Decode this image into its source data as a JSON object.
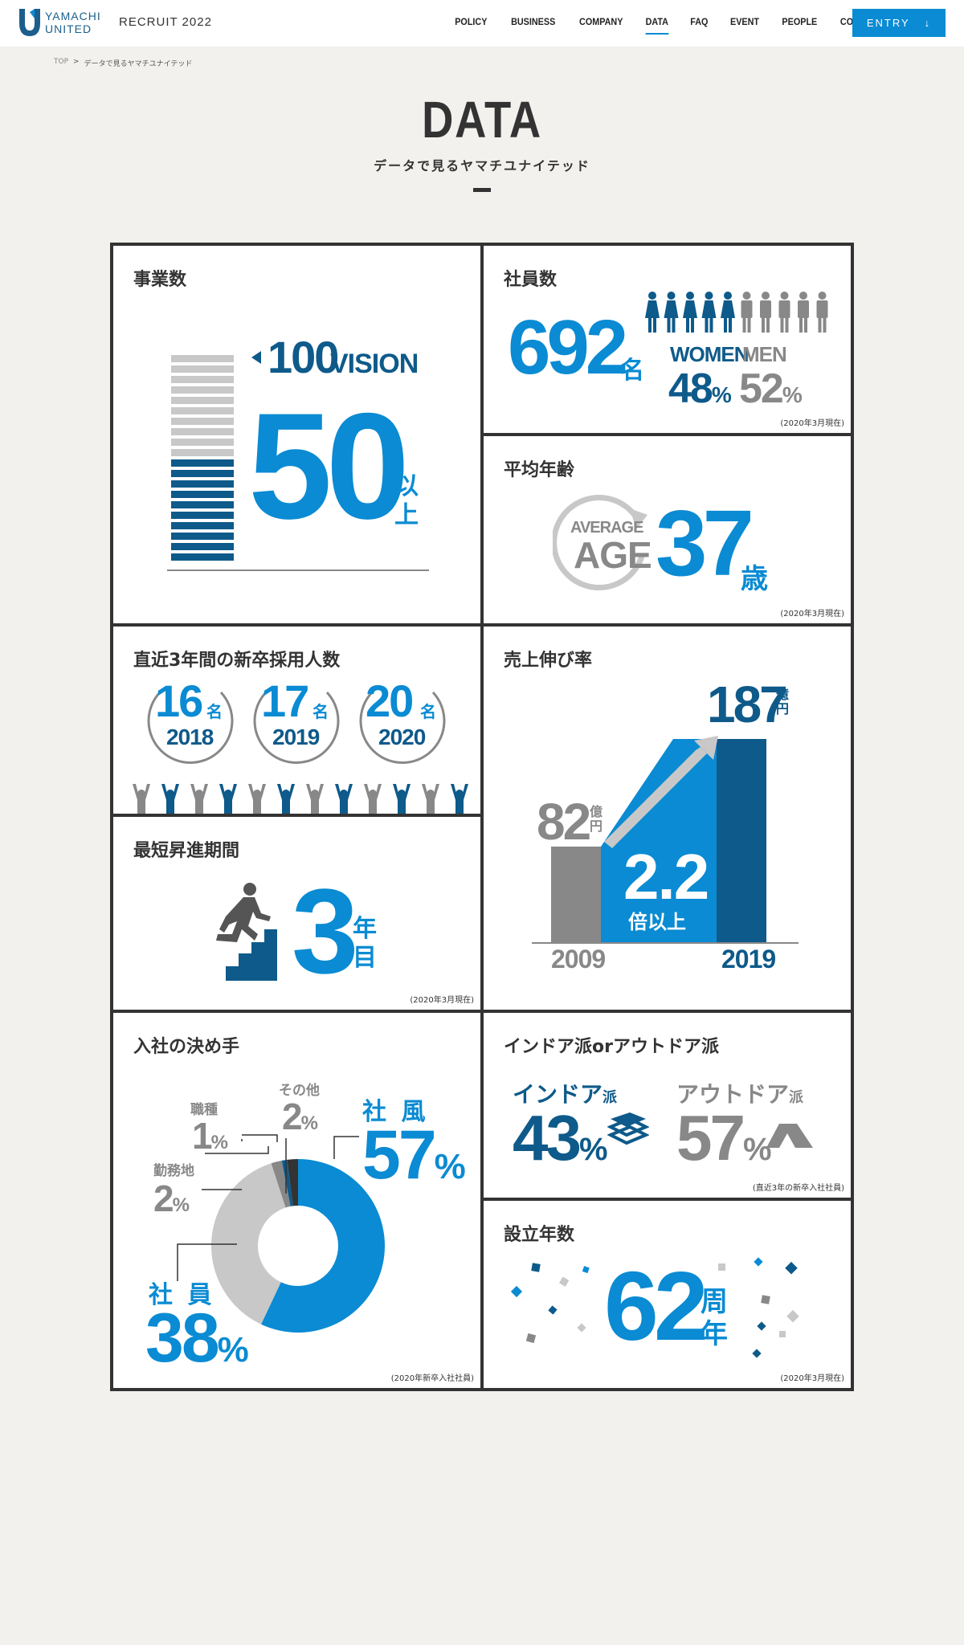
{
  "header": {
    "logo_line1": "YAMACHI",
    "logo_line2": "UNITED",
    "recruit": "RECRUIT 2022",
    "nav": [
      "POLICY",
      "BUSINESS",
      "COMPANY",
      "DATA",
      "FAQ",
      "EVENT",
      "PEOPLE",
      "CONTACT"
    ],
    "active": "DATA",
    "entry": "ENTRY"
  },
  "breadcrumb": {
    "top": "TOP",
    "sep": ">",
    "current": "データで見るヤマチユナイテッド"
  },
  "title": {
    "main": "DATA",
    "sub": "データで見るヤマチユナイテッド"
  },
  "colors": {
    "blue": "#0a8bd3",
    "dark_blue": "#0e5a8a",
    "grey": "#888888",
    "light_grey": "#c8c8c8",
    "bg": "#f2f1ee"
  },
  "cells": {
    "business": {
      "title": "事業数",
      "goal_num": "100",
      "goal_label": "VISION",
      "value": "50",
      "unit1": "以",
      "unit2": "上",
      "bars_filled": 0.5
    },
    "employees": {
      "title": "社員数",
      "value": "692",
      "unit": "名",
      "women_label": "WOMEN",
      "men_label": "MEN",
      "women_pct": "48",
      "men_pct": "52",
      "pct": "%",
      "note": "(2020年3月現在)"
    },
    "age": {
      "title": "平均年齢",
      "ring1": "AVERAGE",
      "ring2": "AGE",
      "value": "37",
      "unit": "歳",
      "note": "(2020年3月現在)"
    },
    "hires": {
      "title": "直近3年間の新卒採用人数",
      "unit": "名",
      "years": [
        {
          "num": "16",
          "year": "2018"
        },
        {
          "num": "17",
          "year": "2019"
        },
        {
          "num": "20",
          "year": "2020"
        }
      ]
    },
    "sales": {
      "title": "売上伸び率",
      "v2009": "82",
      "v2019": "187",
      "unit_a": "億",
      "unit_b": "円",
      "ratio": "2.2",
      "ratio_label": "倍以上",
      "year_a": "2009",
      "year_b": "2019"
    },
    "promotion": {
      "title": "最短昇進期間",
      "value": "3",
      "unit1": "年",
      "unit2": "目",
      "note": "(2020年3月現在)"
    },
    "reason": {
      "title": "入社の決め手",
      "note": "(2020年新卒入社社員)",
      "pct": "%",
      "slices": [
        {
          "label": "社 風",
          "value": "57"
        },
        {
          "label": "社 員",
          "value": "38"
        },
        {
          "label": "勤務地",
          "value": "2"
        },
        {
          "label": "職種",
          "value": "1"
        },
        {
          "label": "その他",
          "value": "2"
        }
      ]
    },
    "indoor": {
      "title": "インドア派orアウトドア派",
      "in_label": "インドア",
      "out_label": "アウトドア",
      "suffix": "派",
      "in_pct": "43",
      "out_pct": "57",
      "pct": "%",
      "note": "(直近3年の新卒入社社員)"
    },
    "founded": {
      "title": "設立年数",
      "value": "62",
      "unit1": "周",
      "unit2": "年",
      "note": "(2020年3月現在)"
    }
  }
}
